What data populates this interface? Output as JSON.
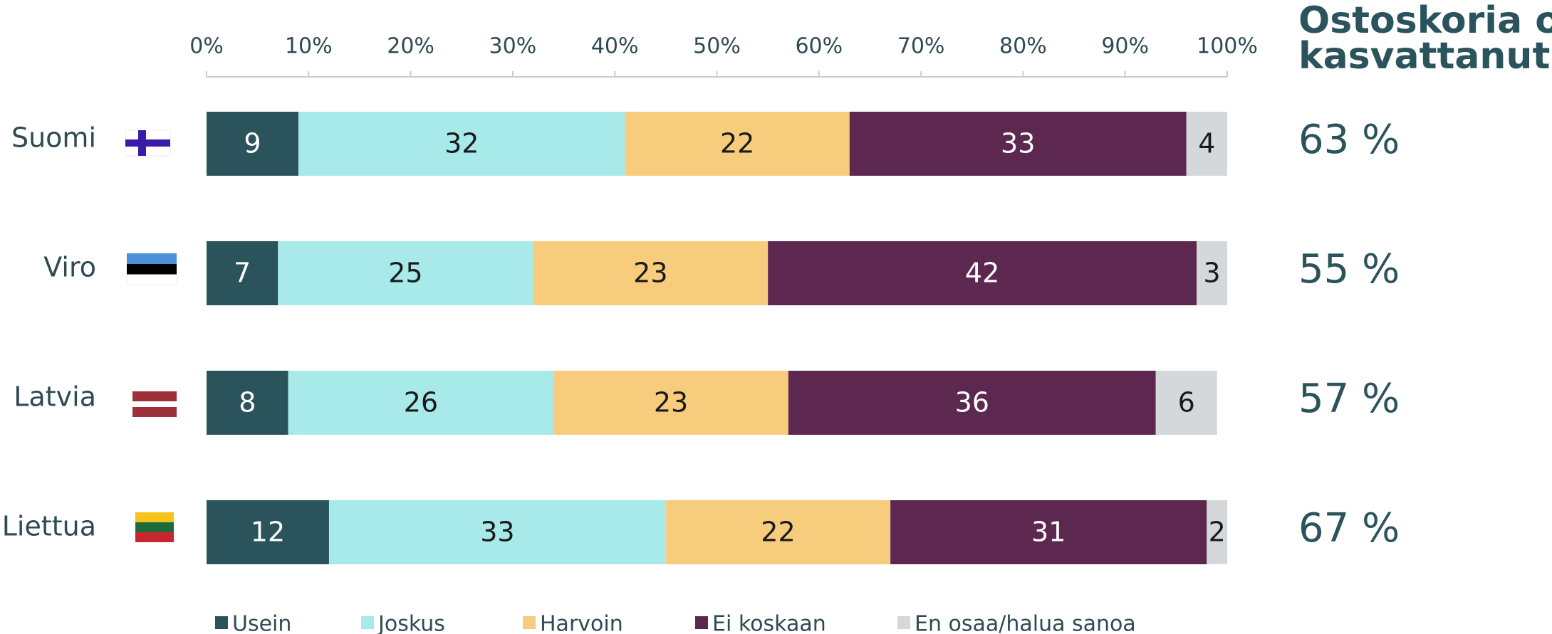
{
  "chart_data": {
    "type": "stacked_barh",
    "categories": [
      "Suomi",
      "Viro",
      "Latvia",
      "Liettua"
    ],
    "series": [
      {
        "name": "Usein",
        "color": "#2b535c",
        "label_color": "#ffffff",
        "values": [
          9,
          7,
          8,
          12
        ]
      },
      {
        "name": "Joskus",
        "color": "#a8eaea",
        "label_color": "#1a1a1a",
        "values": [
          32,
          25,
          26,
          33
        ]
      },
      {
        "name": "Harvoin",
        "color": "#f7cc7d",
        "label_color": "#1a1a1a",
        "values": [
          22,
          23,
          23,
          22
        ]
      },
      {
        "name": "Ei koskaan",
        "color": "#5c2850",
        "label_color": "#ffffff",
        "values": [
          33,
          42,
          36,
          31
        ]
      },
      {
        "name": "En osaa/halua sanoa",
        "color": "#d5d8db",
        "label_color": "#1a1a1a",
        "values": [
          4,
          3,
          6,
          2
        ]
      }
    ],
    "xlim": [
      0,
      100
    ],
    "xticks": [
      {
        "value": 0,
        "label": "0%"
      },
      {
        "value": 10,
        "label": "10%"
      },
      {
        "value": 20,
        "label": "20%"
      },
      {
        "value": 30,
        "label": "30%"
      },
      {
        "value": 40,
        "label": "40%"
      },
      {
        "value": 50,
        "label": "50%"
      },
      {
        "value": 60,
        "label": "60%"
      },
      {
        "value": 70,
        "label": "70%"
      },
      {
        "value": 80,
        "label": "80%"
      },
      {
        "value": 90,
        "label": "90%"
      },
      {
        "value": 100,
        "label": "100%"
      }
    ],
    "side_column": {
      "title_lines": [
        "Ostoskoria on",
        "kasvattanut"
      ],
      "values": [
        63,
        55,
        57,
        67
      ],
      "value_labels": [
        "63 %",
        "55 %",
        "57 %",
        "67 %"
      ],
      "color": "#2b535c"
    }
  }
}
